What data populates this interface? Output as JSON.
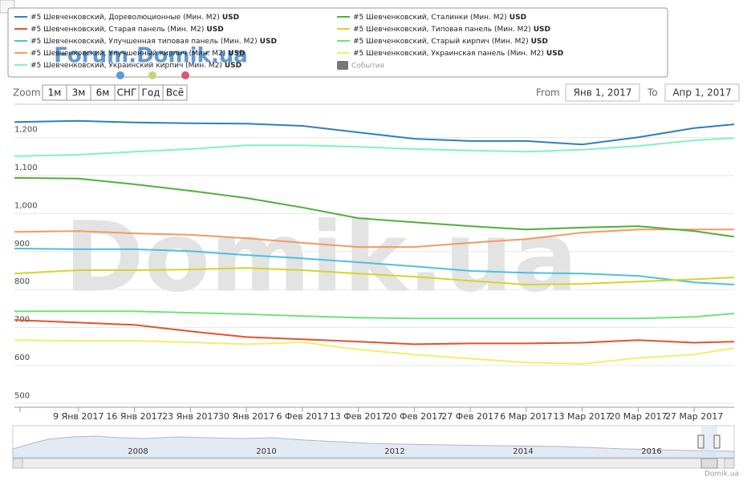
{
  "chart_data": {
    "type": "line",
    "currency": "USD",
    "events_label": "События",
    "watermark": "Domik.ua",
    "watermark_small": "Forum.Domik.ua",
    "credit": "Domik.ua",
    "range_selector": {
      "zoom_label": "Zoom",
      "buttons": [
        "1м",
        "3м",
        "6м",
        "СНГ",
        "Год",
        "Всё"
      ],
      "from_label": "From",
      "from": "Янв 1, 2017",
      "to_label": "To",
      "to": "Апр 1, 2017"
    },
    "navigator_labels": [
      "2008",
      "2010",
      "2012",
      "2014",
      "2016"
    ],
    "x": [
      "2017-01-01",
      "2017-01-09",
      "2017-01-16",
      "2017-01-23",
      "2017-01-30",
      "2017-02-06",
      "2017-02-13",
      "2017-02-20",
      "2017-02-27",
      "2017-03-06",
      "2017-03-13",
      "2017-03-20",
      "2017-03-27",
      "2017-04-01"
    ],
    "xlim": [
      "2017-01-01",
      "2017-04-01"
    ],
    "xticks": [
      {
        "value": "2017-01-09",
        "label": "9 Янв 2017"
      },
      {
        "value": "2017-01-16",
        "label": "16 Янв 2017"
      },
      {
        "value": "2017-01-23",
        "label": "23 Янв 2017"
      },
      {
        "value": "2017-01-30",
        "label": "30 Янв 2017"
      },
      {
        "value": "2017-02-06",
        "label": "6 Фев 2017"
      },
      {
        "value": "2017-02-13",
        "label": "13 Фев 2017"
      },
      {
        "value": "2017-02-20",
        "label": "20 Фев 2017"
      },
      {
        "value": "2017-02-27",
        "label": "27 Фев 2017"
      },
      {
        "value": "2017-03-06",
        "label": "6 Мар 2017"
      },
      {
        "value": "2017-03-13",
        "label": "13 Мар 2017"
      },
      {
        "value": "2017-03-20",
        "label": "20 Мар 2017"
      },
      {
        "value": "2017-03-27",
        "label": "27 Мар 2017"
      }
    ],
    "ylim": [
      490,
      1288
    ],
    "yticks": [
      500,
      600,
      700,
      800,
      900,
      {
        "value": 1000,
        "label": "1,000"
      },
      {
        "value": 1100,
        "label": "1,100"
      },
      {
        "value": 1200,
        "label": "1,200"
      }
    ],
    "grid": true,
    "series": [
      {
        "name": "#5 Шевченковский, Дореволюционные (Мин. М2)",
        "color": "#2f7ebc",
        "values": [
          1241,
          1244,
          1240,
          1238,
          1237,
          1231,
          1214,
          1197,
          1191,
          1191,
          1182,
          1201,
          1225,
          1235
        ]
      },
      {
        "name": "#5 Шевченковский, Старая панель (Мин. М2)",
        "color": "#e0532b",
        "values": [
          720,
          713,
          707,
          690,
          675,
          669,
          663,
          656,
          658,
          658,
          660,
          667,
          660,
          663
        ]
      },
      {
        "name": "#5 Шевченковский, Улучшенная типовая панель (Мин. М2)",
        "color": "#4cc0e0",
        "values": [
          908,
          906,
          906,
          901,
          891,
          882,
          872,
          861,
          849,
          844,
          842,
          836,
          819,
          813
        ]
      },
      {
        "name": "#5 Шевченковский, Улучшенный кирпич (Мин. М2)",
        "color": "#f39a62",
        "values": [
          952,
          954,
          948,
          944,
          935,
          923,
          912,
          912,
          923,
          933,
          950,
          958,
          958,
          958
        ]
      },
      {
        "name": "#5 Шевченковский, Украинский кирпич (Мин. М2)",
        "color": "#7ff3c0",
        "values": [
          1151,
          1155,
          1163,
          1170,
          1180,
          1180,
          1176,
          1170,
          1166,
          1163,
          1168,
          1178,
          1193,
          1199
        ]
      },
      {
        "name": "#5 Шевченковский, Сталинки (Мин. М2)",
        "color": "#4fae3c",
        "values": [
          1094,
          1092,
          1077,
          1060,
          1041,
          1016,
          988,
          977,
          967,
          958,
          963,
          967,
          954,
          939
        ]
      },
      {
        "name": "#5 Шевченковский, Типовая панель (Мин. М2)",
        "color": "#d4d42a",
        "values": [
          842,
          851,
          851,
          853,
          857,
          851,
          842,
          834,
          823,
          813,
          815,
          821,
          827,
          832
        ]
      },
      {
        "name": "#5 Шевченковский, Старый кирпич (Мин. М2)",
        "color": "#6de27a",
        "values": [
          743,
          743,
          743,
          739,
          735,
          730,
          726,
          724,
          724,
          724,
          724,
          724,
          728,
          737
        ]
      },
      {
        "name": "#5 Шевченковский, Украинская панель (Мин. М2)",
        "color": "#f2ee6a",
        "values": [
          667,
          665,
          665,
          661,
          656,
          661,
          642,
          629,
          618,
          608,
          604,
          620,
          629,
          646
        ]
      }
    ]
  }
}
